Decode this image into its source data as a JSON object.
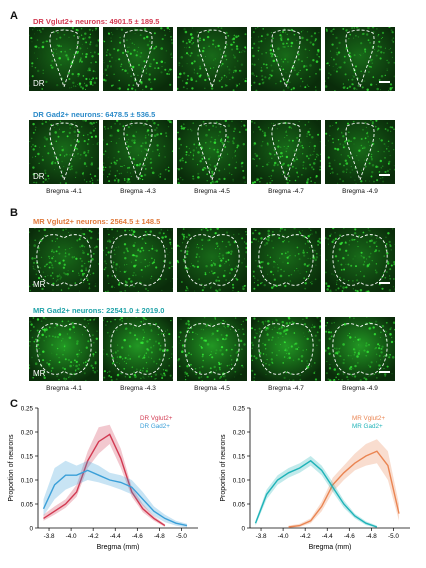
{
  "panels": {
    "a_label": "A",
    "b_label": "B",
    "c_label": "C"
  },
  "rows": [
    {
      "title": "DR Vglut2+ neurons: 4901.5 ± 189.5",
      "color": "#d23a52",
      "region": "DR",
      "shape": "dr",
      "show_bregma": false
    },
    {
      "title": "DR Gad2+ neurons: 6478.5 ± 536.5",
      "color": "#2c8bc9",
      "region": "DR",
      "shape": "dr",
      "show_bregma": true
    },
    {
      "title": "MR Vglut2+ neurons: 2564.5 ± 148.5",
      "color": "#e07a3c",
      "region": "MR",
      "shape": "mr",
      "show_bregma": false
    },
    {
      "title": "MR Gad2+ neurons: 22541.0 ± 2019.0",
      "color": "#1fa3a8",
      "region": "MR",
      "shape": "mr",
      "show_bregma": true
    }
  ],
  "bregma_labels": [
    "Bregma -4.1",
    "Bregma -4.3",
    "Bregma -4.5",
    "Bregma -4.7",
    "Bregma -4.9"
  ],
  "colors": {
    "tile_background": "#061a06",
    "fluorescence": "#39ff3c",
    "dr_vglut2": "#d23a52",
    "dr_gad2": "#3a9fd8",
    "mr_vglut2": "#ea8552",
    "mr_gad2": "#1fb3b8"
  },
  "chart_data": [
    {
      "type": "line",
      "xlabel": "Bregma (mm)",
      "ylabel": "Proportion of neurons",
      "xlim": [
        -3.7,
        -5.15
      ],
      "ylim": [
        0,
        0.25
      ],
      "xticks": [
        -3.8,
        -4.0,
        -4.2,
        -4.4,
        -4.6,
        -4.8,
        -5.0
      ],
      "xtick_labels": [
        "-3.8",
        "-4.0",
        "-4.2",
        "-4.4",
        "-4.6",
        "-4.8",
        "-5.0"
      ],
      "yticks": [
        0,
        0.05,
        0.1,
        0.15,
        0.2,
        0.25
      ],
      "ytick_labels": [
        "0",
        "0.05",
        "0.10",
        "0.15",
        "0.20",
        "0.25"
      ],
      "legend_position": "top-right",
      "series": [
        {
          "name": "DR Vglut2+",
          "color": "#d23a52",
          "x": [
            -3.75,
            -3.85,
            -3.95,
            -4.05,
            -4.15,
            -4.25,
            -4.35,
            -4.45,
            -4.55,
            -4.65,
            -4.75,
            -4.85
          ],
          "y": [
            0.02,
            0.035,
            0.05,
            0.075,
            0.14,
            0.18,
            0.195,
            0.145,
            0.075,
            0.04,
            0.02,
            0.005
          ],
          "lower": [
            0.015,
            0.028,
            0.042,
            0.065,
            0.125,
            0.155,
            0.175,
            0.125,
            0.065,
            0.033,
            0.015,
            0.002
          ],
          "upper": [
            0.028,
            0.045,
            0.06,
            0.09,
            0.16,
            0.21,
            0.215,
            0.165,
            0.085,
            0.05,
            0.025,
            0.008
          ]
        },
        {
          "name": "DR Gad2+",
          "color": "#3a9fd8",
          "x": [
            -3.75,
            -3.85,
            -3.95,
            -4.05,
            -4.15,
            -4.25,
            -4.35,
            -4.45,
            -4.55,
            -4.65,
            -4.75,
            -4.85,
            -4.95,
            -5.05
          ],
          "y": [
            0.04,
            0.09,
            0.11,
            0.11,
            0.12,
            0.11,
            0.1,
            0.095,
            0.085,
            0.06,
            0.035,
            0.02,
            0.01,
            0.005
          ],
          "lower": [
            0.025,
            0.06,
            0.08,
            0.09,
            0.1,
            0.095,
            0.088,
            0.08,
            0.07,
            0.047,
            0.025,
            0.012,
            0.005,
            0.001
          ],
          "upper": [
            0.06,
            0.125,
            0.14,
            0.13,
            0.14,
            0.13,
            0.115,
            0.11,
            0.1,
            0.075,
            0.045,
            0.028,
            0.015,
            0.009
          ]
        }
      ]
    },
    {
      "type": "line",
      "xlabel": "Bregma (mm)",
      "ylabel": "Proportion of neurons",
      "xlim": [
        -3.7,
        -5.15
      ],
      "ylim": [
        0,
        0.25
      ],
      "xticks": [
        -3.8,
        -4.0,
        -4.2,
        -4.4,
        -4.6,
        -4.8,
        -5.0
      ],
      "xtick_labels": [
        "-3.8",
        "-4.0",
        "-4.2",
        "-4.4",
        "-4.6",
        "-4.8",
        "-5.0"
      ],
      "yticks": [
        0,
        0.05,
        0.1,
        0.15,
        0.2,
        0.25
      ],
      "ytick_labels": [
        "0",
        "0.05",
        "0.10",
        "0.15",
        "0.20",
        "0.25"
      ],
      "legend_position": "top-right",
      "series": [
        {
          "name": "MR Vglut2+",
          "color": "#ea8552",
          "x": [
            -4.05,
            -4.15,
            -4.25,
            -4.35,
            -4.45,
            -4.55,
            -4.65,
            -4.75,
            -4.85,
            -4.95,
            -5.05
          ],
          "y": [
            0.002,
            0.005,
            0.015,
            0.045,
            0.09,
            0.115,
            0.135,
            0.15,
            0.16,
            0.13,
            0.03
          ],
          "lower": [
            0.0,
            0.002,
            0.01,
            0.035,
            0.075,
            0.1,
            0.12,
            0.13,
            0.135,
            0.1,
            0.015
          ],
          "upper": [
            0.005,
            0.009,
            0.02,
            0.055,
            0.105,
            0.13,
            0.155,
            0.175,
            0.185,
            0.16,
            0.05
          ]
        },
        {
          "name": "MR Gad2+",
          "color": "#1fb3b8",
          "x": [
            -3.75,
            -3.85,
            -3.95,
            -4.05,
            -4.15,
            -4.25,
            -4.35,
            -4.45,
            -4.55,
            -4.65,
            -4.75,
            -4.85
          ],
          "y": [
            0.01,
            0.07,
            0.1,
            0.115,
            0.125,
            0.14,
            0.12,
            0.085,
            0.05,
            0.025,
            0.01,
            0.002
          ],
          "lower": [
            0.005,
            0.06,
            0.09,
            0.105,
            0.115,
            0.13,
            0.11,
            0.075,
            0.042,
            0.02,
            0.006,
            0.0
          ],
          "upper": [
            0.015,
            0.08,
            0.11,
            0.125,
            0.135,
            0.15,
            0.13,
            0.095,
            0.058,
            0.03,
            0.014,
            0.005
          ]
        }
      ]
    }
  ]
}
